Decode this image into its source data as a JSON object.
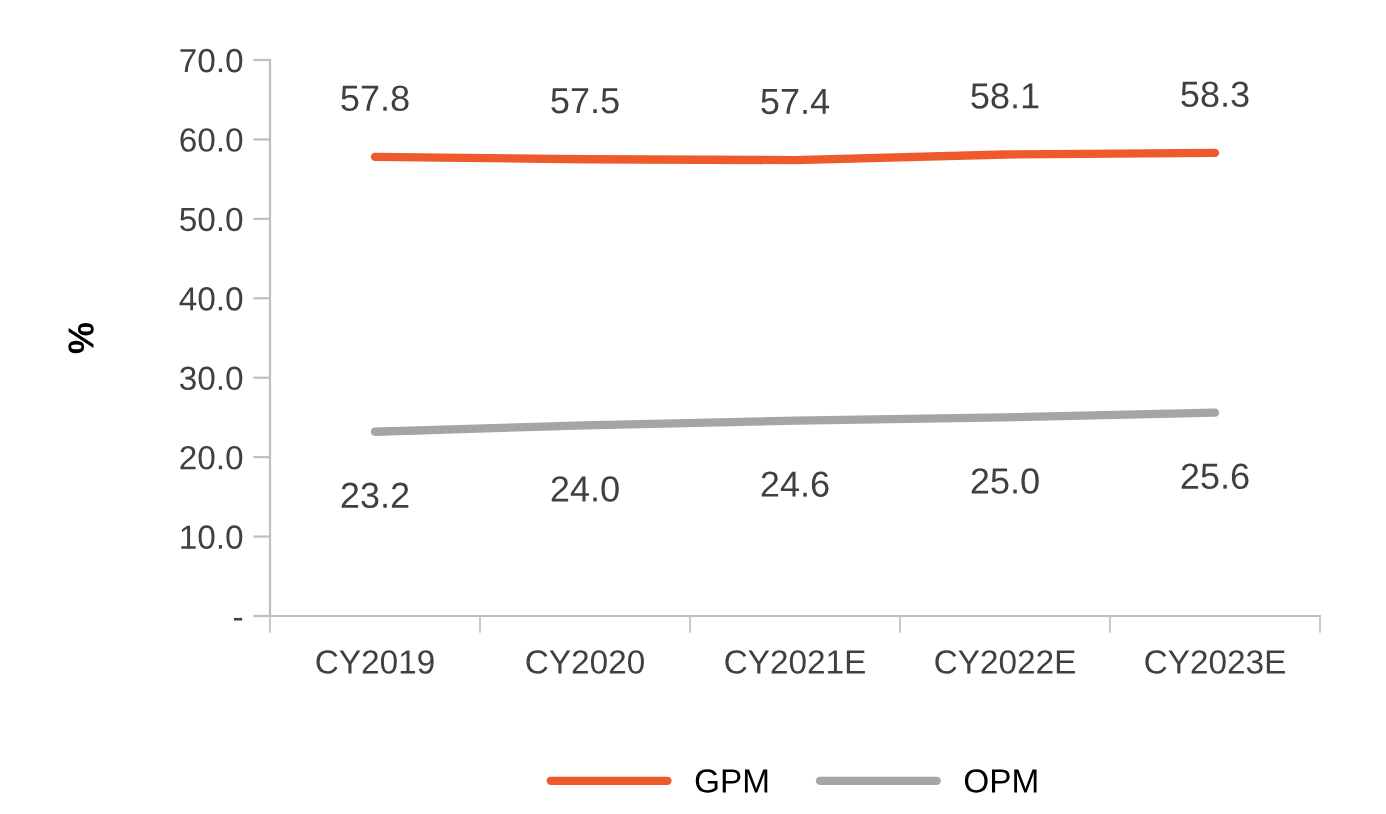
{
  "chart_data": {
    "type": "line",
    "ylabel": "%",
    "categories": [
      "CY2019",
      "CY2020",
      "CY2021E",
      "CY2022E",
      "CY2023E"
    ],
    "series": [
      {
        "name": "GPM",
        "color": "#ee5a2c",
        "values": [
          57.8,
          57.5,
          57.4,
          58.1,
          58.3
        ],
        "value_labels": [
          "57.8",
          "57.5",
          "57.4",
          "58.1",
          "58.3"
        ]
      },
      {
        "name": "OPM",
        "color": "#a5a5a5",
        "values": [
          23.2,
          24.0,
          24.6,
          25.0,
          25.6
        ],
        "value_labels": [
          "23.2",
          "24.0",
          "24.6",
          "25.0",
          "25.6"
        ]
      }
    ],
    "ylim": [
      0,
      70
    ],
    "yticks": [
      {
        "value": 0,
        "label": "-"
      },
      {
        "value": 10,
        "label": "10.0"
      },
      {
        "value": 20,
        "label": "20.0"
      },
      {
        "value": 30,
        "label": "30.0"
      },
      {
        "value": 40,
        "label": "40.0"
      },
      {
        "value": 50,
        "label": "50.0"
      },
      {
        "value": 60,
        "label": "60.0"
      },
      {
        "value": 70,
        "label": "70.0"
      }
    ],
    "grid": false,
    "legend": "bottom",
    "marker": "none",
    "line_style": "solid"
  }
}
